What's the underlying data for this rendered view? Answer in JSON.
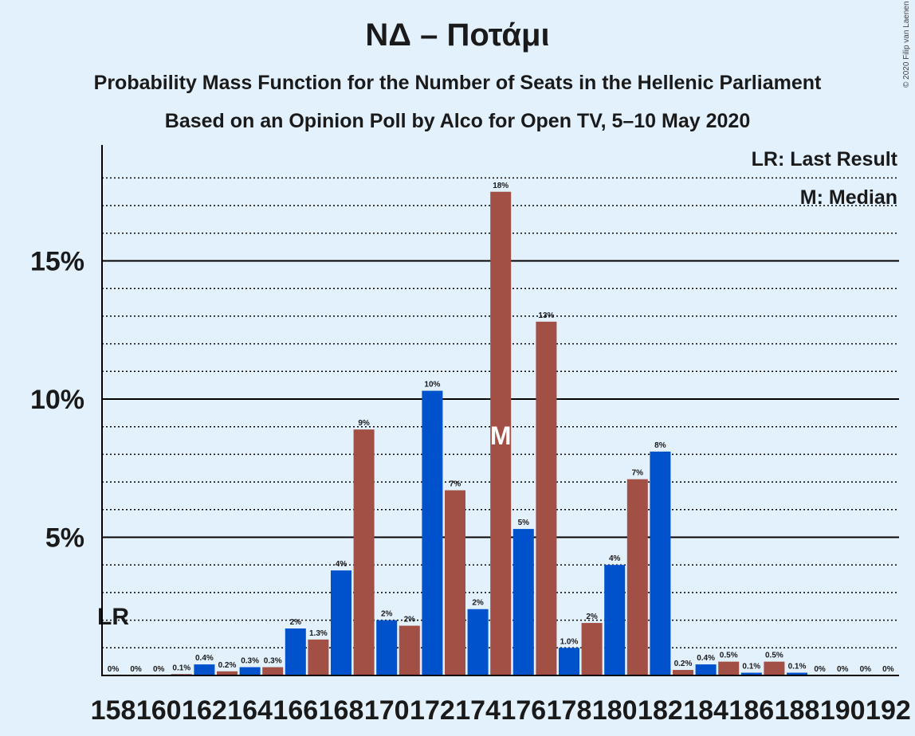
{
  "chart_data": {
    "type": "bar",
    "title": "ΝΔ – Ποτάμι",
    "subtitle": "Probability Mass Function for the Number of Seats in the Hellenic Parliament",
    "subtitle2": "Based on an Opinion Poll by Alco for Open TV, 5–10 May 2020",
    "legend": {
      "last_result": "LR: Last Result",
      "median": "M: Median",
      "placement": "top-right"
    },
    "copyright": "© 2020 Filip van Laenen",
    "last_result_label": "LR",
    "last_result_x": 158,
    "median_label": "M",
    "median_x": 175,
    "ylim": [
      0,
      19
    ],
    "y_ticks": [
      {
        "value": 5,
        "label": "5%"
      },
      {
        "value": 10,
        "label": "10%"
      },
      {
        "value": 15,
        "label": "15%"
      }
    ],
    "x_tick_labels": [
      "158",
      "160",
      "162",
      "164",
      "166",
      "168",
      "170",
      "172",
      "174",
      "176",
      "178",
      "180",
      "182",
      "184",
      "186",
      "188",
      "190",
      "192"
    ],
    "colors": {
      "odd": "#a24f46",
      "even": "#0052cc",
      "background": "#e3f1fd",
      "axis": "#000000"
    },
    "x": [
      158,
      159,
      160,
      161,
      162,
      163,
      164,
      165,
      166,
      167,
      168,
      169,
      170,
      171,
      172,
      173,
      174,
      175,
      176,
      177,
      178,
      179,
      180,
      181,
      182,
      183,
      184,
      185,
      186,
      187,
      188,
      189,
      190,
      191,
      192
    ],
    "values": [
      0,
      0,
      0,
      0.05,
      0.4,
      0.15,
      0.3,
      0.3,
      1.7,
      1.3,
      3.8,
      8.9,
      2.0,
      1.8,
      10.3,
      6.7,
      2.4,
      17.5,
      5.3,
      12.8,
      1.0,
      1.9,
      4.0,
      7.1,
      8.1,
      0.2,
      0.4,
      0.5,
      0.1,
      0.5,
      0.1,
      0,
      0,
      0,
      0
    ],
    "labels": [
      "0%",
      "0%",
      "0%",
      "0.1%",
      "0.4%",
      "0.2%",
      "0.3%",
      "0.3%",
      "2%",
      "1.3%",
      "4%",
      "9%",
      "2%",
      "2%",
      "10%",
      "7%",
      "2%",
      "18%",
      "5%",
      "13%",
      "1.0%",
      "2%",
      "4%",
      "7%",
      "8%",
      "0.2%",
      "0.4%",
      "0.5%",
      "0.1%",
      "0.5%",
      "0.1%",
      "0%",
      "0%",
      "0%",
      "0%"
    ]
  }
}
